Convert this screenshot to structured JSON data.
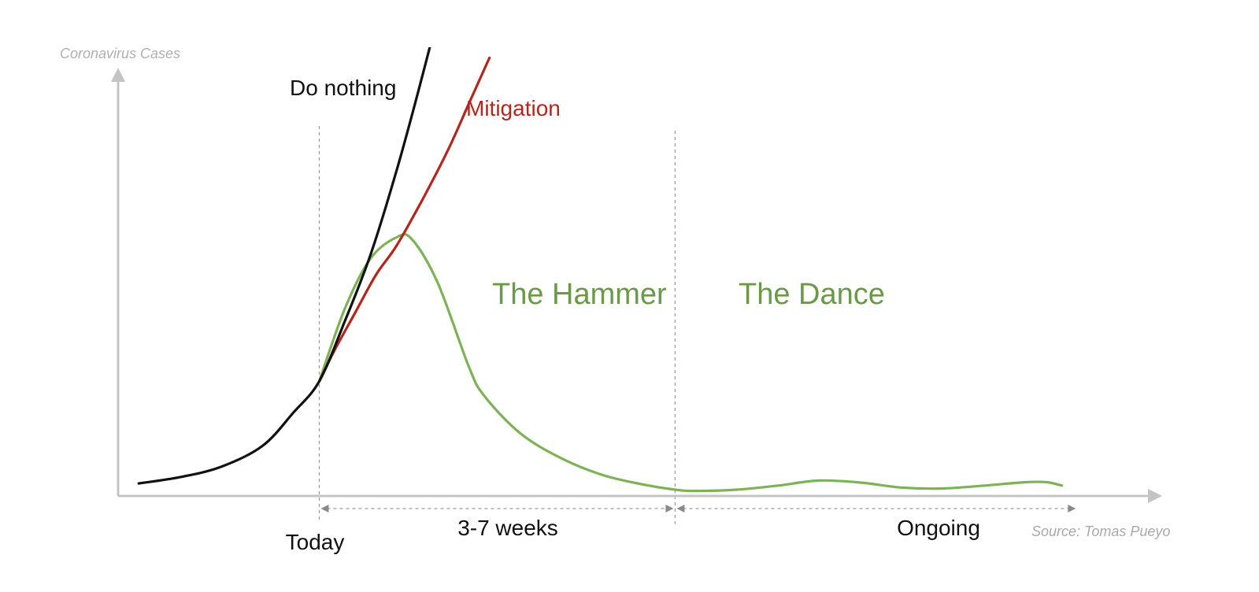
{
  "chart_data": {
    "type": "line",
    "ylabel": "Coronavirus Cases",
    "source": "Source: Tomas Pueyo",
    "xlim": [
      0,
      100
    ],
    "ylim": [
      0,
      100
    ],
    "x_markers": [
      {
        "x": 19.5,
        "label": "Today"
      },
      {
        "x": 54.0,
        "label": ""
      }
    ],
    "spans": [
      {
        "from": 19.5,
        "to": 54.0,
        "label": "3-7 weeks"
      },
      {
        "from": 54.0,
        "to": 93.0,
        "label": "Ongoing"
      }
    ],
    "phases": [
      {
        "label": "The Hammer",
        "color": "#6a9a48"
      },
      {
        "label": "The Dance",
        "color": "#6a9a48"
      }
    ],
    "series": [
      {
        "name": "Do nothing",
        "color": "#111111",
        "x": [
          2,
          6,
          10,
          14,
          17,
          19.5,
          22,
          24.5,
          27,
          29,
          31
        ],
        "y": [
          3,
          4.5,
          7,
          12,
          20,
          27.5,
          42,
          58,
          78,
          96,
          115
        ]
      },
      {
        "name": "Mitigation",
        "color": "#b3261e",
        "x": [
          19.5,
          21,
          23,
          25,
          27,
          29.5,
          32,
          34,
          36
        ],
        "y": [
          27.5,
          35,
          44,
          53,
          60,
          71,
          83,
          94,
          105
        ]
      },
      {
        "name": "",
        "color": "#7db356",
        "x": [
          19.5,
          22,
          24.5,
          27,
          28.5,
          31,
          34,
          35.5,
          39,
          43,
          47,
          51,
          54,
          56,
          60,
          64,
          68,
          72,
          76,
          80,
          84,
          88,
          90,
          91.5
        ],
        "y": [
          27.5,
          45,
          57,
          62,
          61.5,
          51,
          31,
          24,
          15,
          9,
          5,
          2.7,
          1.5,
          1.2,
          1.5,
          2.5,
          3.7,
          3.2,
          2.0,
          1.8,
          2.5,
          3.3,
          3.3,
          2.5
        ]
      }
    ]
  }
}
